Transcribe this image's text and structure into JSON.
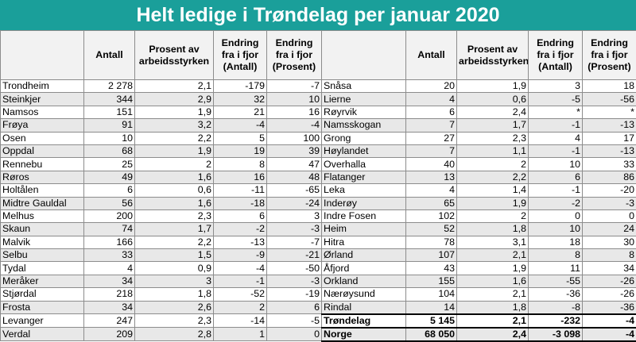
{
  "title": "Helt ledige i Trøndelag per januar 2020",
  "colors": {
    "banner": "#1a9f9a",
    "stripe": "#e8e8e8",
    "header_bg": "#f2f2f2"
  },
  "headers": {
    "left": [
      "",
      "Antall",
      "Prosent av arbeidsstyrken",
      "Endring fra i fjor (Antall)",
      "Endring fra i fjor (Prosent)"
    ],
    "right": [
      "",
      "Antall",
      "Prosent av arbeidsstyrken",
      "Endring fra i fjor (Antall)",
      "Endring fra i fjor (Prosent)"
    ]
  },
  "left_rows": [
    [
      "Trondheim",
      "2 278",
      "2,1",
      "-179",
      "-7"
    ],
    [
      "Steinkjer",
      "344",
      "2,9",
      "32",
      "10"
    ],
    [
      "Namsos",
      "151",
      "1,9",
      "21",
      "16"
    ],
    [
      "Frøya",
      "91",
      "3,2",
      "-4",
      "-4"
    ],
    [
      "Osen",
      "10",
      "2,2",
      "5",
      "100"
    ],
    [
      "Oppdal",
      "68",
      "1,9",
      "19",
      "39"
    ],
    [
      "Rennebu",
      "25",
      "2",
      "8",
      "47"
    ],
    [
      "Røros",
      "49",
      "1,6",
      "16",
      "48"
    ],
    [
      "Holtålen",
      "6",
      "0,6",
      "-11",
      "-65"
    ],
    [
      "Midtre Gauldal",
      "56",
      "1,6",
      "-18",
      "-24"
    ],
    [
      "Melhus",
      "200",
      "2,3",
      "6",
      "3"
    ],
    [
      "Skaun",
      "74",
      "1,7",
      "-2",
      "-3"
    ],
    [
      "Malvik",
      "166",
      "2,2",
      "-13",
      "-7"
    ],
    [
      "Selbu",
      "33",
      "1,5",
      "-9",
      "-21"
    ],
    [
      "Tydal",
      "4",
      "0,9",
      "-4",
      "-50"
    ],
    [
      "Meråker",
      "34",
      "3",
      "-1",
      "-3"
    ],
    [
      "Stjørdal",
      "218",
      "1,8",
      "-52",
      "-19"
    ],
    [
      "Frosta",
      "34",
      "2,6",
      "2",
      "6"
    ],
    [
      "Levanger",
      "247",
      "2,3",
      "-14",
      "-5"
    ],
    [
      "Verdal",
      "209",
      "2,8",
      "1",
      "0"
    ]
  ],
  "right_rows": [
    [
      "Snåsa",
      "20",
      "1,9",
      "3",
      "18"
    ],
    [
      "Lierne",
      "4",
      "0,6",
      "-5",
      "-56"
    ],
    [
      "Røyrvik",
      "6",
      "2,4",
      "*",
      "*"
    ],
    [
      "Namsskogan",
      "7",
      "1,7",
      "-1",
      "-13"
    ],
    [
      "Grong",
      "27",
      "2,3",
      "4",
      "17"
    ],
    [
      "Høylandet",
      "7",
      "1,1",
      "-1",
      "-13"
    ],
    [
      "Overhalla",
      "40",
      "2",
      "10",
      "33"
    ],
    [
      "Flatanger",
      "13",
      "2,2",
      "6",
      "86"
    ],
    [
      "Leka",
      "4",
      "1,4",
      "-1",
      "-20"
    ],
    [
      "Inderøy",
      "65",
      "1,9",
      "-2",
      "-3"
    ],
    [
      "Indre Fosen",
      "102",
      "2",
      "0",
      "0"
    ],
    [
      "Heim",
      "52",
      "1,8",
      "10",
      "24"
    ],
    [
      "Hitra",
      "78",
      "3,1",
      "18",
      "30"
    ],
    [
      "Ørland",
      "107",
      "2,1",
      "8",
      "8"
    ],
    [
      "Åfjord",
      "43",
      "1,9",
      "11",
      "34"
    ],
    [
      "Orkland",
      "155",
      "1,6",
      "-55",
      "-26"
    ],
    [
      "Nærøysund",
      "104",
      "2,1",
      "-36",
      "-26"
    ],
    [
      "Rindal",
      "14",
      "1,8",
      "-8",
      "-36"
    ],
    [
      "Trøndelag",
      "5 145",
      "2,1",
      "-232",
      "-4"
    ],
    [
      "Norge",
      "68 050",
      "2,4",
      "-3 098",
      "-4"
    ]
  ]
}
